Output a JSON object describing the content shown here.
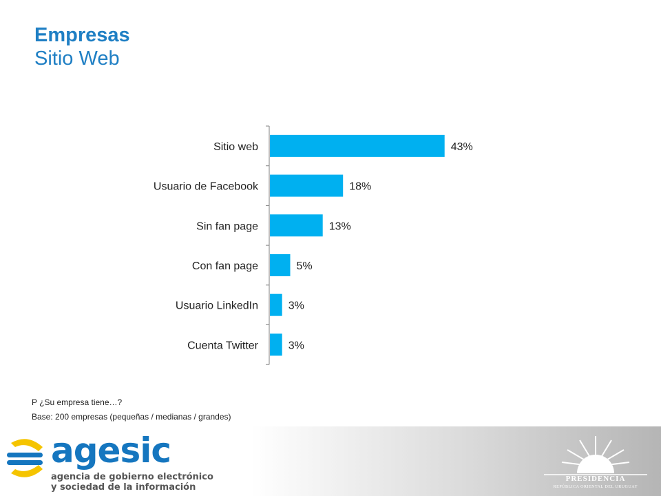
{
  "header": {
    "title": "Empresas",
    "subtitle": "Sitio Web"
  },
  "chart_data": {
    "type": "bar",
    "orientation": "horizontal",
    "categories": [
      "Sitio web",
      "Usuario de Facebook",
      "Sin fan page",
      "Con fan page",
      "Usuario LinkedIn",
      "Cuenta Twitter"
    ],
    "values": [
      43,
      18,
      13,
      5,
      3,
      3
    ],
    "value_labels": [
      "43%",
      "18%",
      "13%",
      "5%",
      "3%",
      "3%"
    ],
    "unit": "%",
    "xlim": [
      0,
      100
    ],
    "grid": false,
    "legend": "none",
    "bar_color": "#00b0f0"
  },
  "notes": {
    "question": "P ¿Su empresa tiene…?",
    "base": "Base: 200 empresas (pequeñas / medianas / grandes)"
  },
  "footer": {
    "logo_word": "agesic",
    "logo_tagline_1": "agencia de gobierno electrónico",
    "logo_tagline_2": "y sociedad de la información",
    "seal_text": "PRESIDENCIA",
    "seal_subtext": "REPÚBLICA ORIENTAL DEL URUGUAY"
  },
  "colors": {
    "title": "#1f7fc4",
    "bar": "#00b0f0",
    "logo_blue": "#1576bf",
    "logo_yellow": "#f5c400"
  }
}
